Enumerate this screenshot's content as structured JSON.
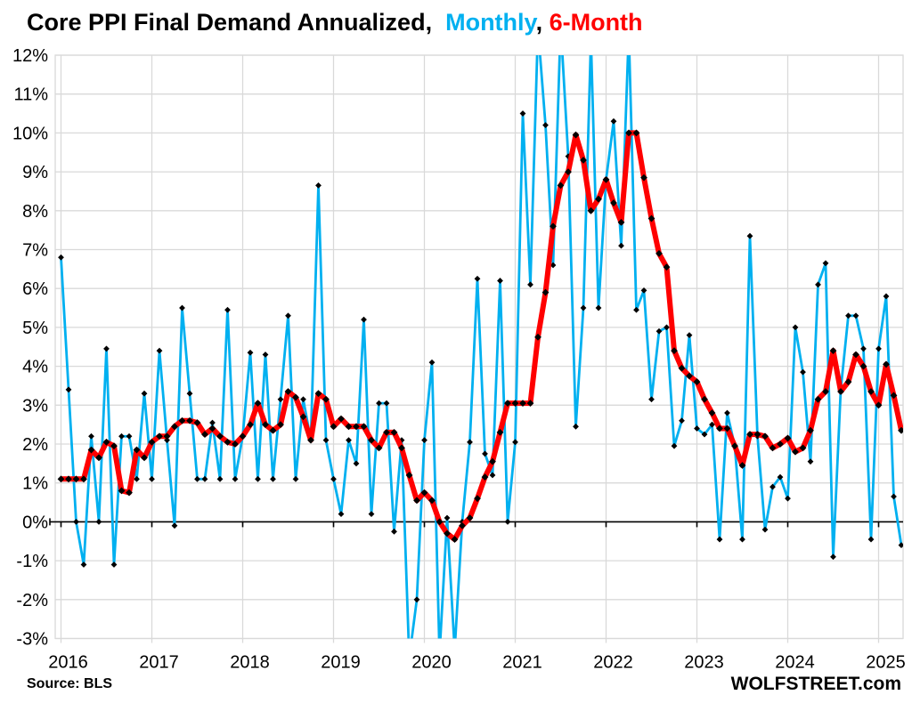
{
  "title": {
    "main": "Core PPI Final Demand Annualized, ",
    "monthly_label": " Monthly",
    "separator": ", ",
    "six_month_label": "6-Month"
  },
  "source_note": "Source: BLS",
  "branding": "WOLFSTREET.com",
  "colors": {
    "monthly_line": "#00B0F0",
    "six_month_line": "#FF0000",
    "marker": "#000000",
    "gridline": "#D9D9D9",
    "axis_line": "#000000",
    "text": "#000000",
    "background": "#FFFFFF"
  },
  "chart_data": {
    "type": "line",
    "title": "Core PPI Final Demand Annualized, Monthly, 6-Month",
    "x_unit": "month",
    "x_start": "2016-01",
    "x_end": "2025-04",
    "x_tick_labels": [
      "2016",
      "2017",
      "2018",
      "2019",
      "2020",
      "2021",
      "2022",
      "2023",
      "2024",
      "2025"
    ],
    "ylabel": "",
    "y_tick_suffix": "%",
    "y_ticks": [
      -3,
      -2,
      -1,
      0,
      1,
      2,
      3,
      4,
      5,
      6,
      7,
      8,
      9,
      10,
      11,
      12
    ],
    "ylim": [
      -3,
      12
    ],
    "grid": true,
    "zero_axis": true,
    "clip_note": "values above 12 or below -3 run off the plot and are clipped",
    "legend_position": "in-title",
    "series": [
      {
        "name": "Monthly",
        "color": "#00B0F0",
        "values": [
          6.8,
          3.4,
          0.0,
          -1.1,
          2.2,
          0.0,
          4.45,
          -1.1,
          2.2,
          2.2,
          1.1,
          3.3,
          1.1,
          4.4,
          2.1,
          -0.1,
          5.5,
          3.3,
          1.1,
          1.1,
          2.55,
          1.1,
          5.45,
          1.1,
          2.2,
          4.35,
          1.1,
          4.3,
          1.1,
          3.15,
          5.3,
          1.1,
          3.15,
          2.1,
          8.65,
          2.1,
          1.1,
          0.2,
          2.1,
          1.5,
          5.2,
          0.2,
          3.05,
          3.05,
          -0.25,
          2.1,
          -3.5,
          -2.0,
          2.1,
          4.1,
          -3.4,
          0.1,
          -3.3,
          0.0,
          2.05,
          6.25,
          1.75,
          1.2,
          6.2,
          0.0,
          2.05,
          10.5,
          6.1,
          12.7,
          10.2,
          6.6,
          12.8,
          9.4,
          2.45,
          5.5,
          12.4,
          5.5,
          8.8,
          10.3,
          7.1,
          12.6,
          5.45,
          5.95,
          3.15,
          4.9,
          5.0,
          1.95,
          2.6,
          4.8,
          2.4,
          2.25,
          2.5,
          -0.45,
          2.8,
          1.95,
          -0.45,
          7.35,
          2.2,
          -0.2,
          0.9,
          1.15,
          0.6,
          5.0,
          3.85,
          1.55,
          6.1,
          6.65,
          -0.9,
          3.4,
          5.3,
          5.3,
          4.45,
          -0.45,
          4.45,
          5.8,
          0.65,
          -0.6
        ]
      },
      {
        "name": "6-Month",
        "color": "#FF0000",
        "values": [
          1.1,
          1.1,
          1.1,
          1.1,
          1.85,
          1.65,
          2.05,
          1.95,
          0.8,
          0.75,
          1.85,
          1.65,
          2.05,
          2.2,
          2.2,
          2.45,
          2.6,
          2.6,
          2.55,
          2.25,
          2.4,
          2.2,
          2.05,
          2.0,
          2.2,
          2.5,
          3.05,
          2.5,
          2.35,
          2.5,
          3.35,
          3.2,
          2.7,
          2.1,
          3.3,
          3.15,
          2.45,
          2.65,
          2.45,
          2.45,
          2.45,
          2.1,
          1.9,
          2.3,
          2.3,
          1.9,
          1.2,
          0.55,
          0.75,
          0.55,
          0.0,
          -0.3,
          -0.45,
          -0.1,
          0.1,
          0.6,
          1.15,
          1.55,
          2.3,
          3.05,
          3.05,
          3.05,
          3.05,
          4.75,
          5.9,
          7.6,
          8.65,
          9.0,
          9.95,
          9.3,
          8.0,
          8.3,
          8.8,
          8.2,
          7.7,
          10.0,
          10.0,
          8.85,
          7.8,
          6.9,
          6.55,
          4.4,
          3.95,
          3.75,
          3.6,
          3.15,
          2.8,
          2.4,
          2.4,
          1.95,
          1.45,
          2.25,
          2.25,
          2.2,
          1.9,
          2.0,
          2.15,
          1.8,
          1.9,
          2.35,
          3.15,
          3.35,
          4.4,
          3.35,
          3.6,
          4.3,
          4.0,
          3.35,
          3.0,
          4.05,
          3.25,
          2.35
        ]
      }
    ]
  }
}
